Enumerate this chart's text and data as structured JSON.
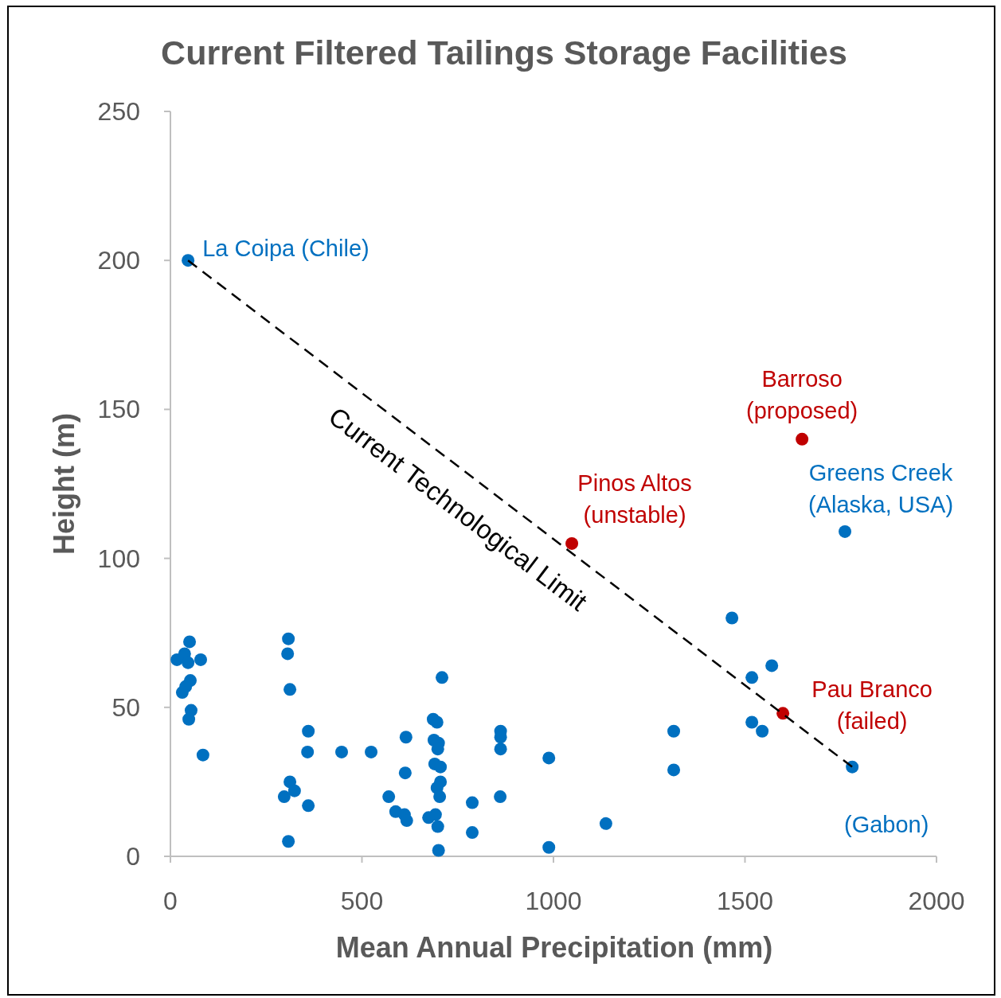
{
  "chart_data": {
    "type": "scatter",
    "title": "Current Filtered Tailings Storage Facilities",
    "xlabel": "Mean Annual Precipitation (mm)",
    "ylabel": "Height (m)",
    "xlim": [
      0,
      2000
    ],
    "xticks": [
      0,
      500,
      1000,
      1500,
      2000
    ],
    "ylim": [
      0,
      250
    ],
    "yticks": [
      0,
      50,
      100,
      150,
      200,
      250
    ],
    "grid": false,
    "marker": "circle",
    "series": [
      {
        "color": "#0070c0",
        "x": [
          46,
          17,
          37,
          50,
          46,
          79,
          52,
          40,
          31,
          54,
          48,
          85,
          308,
          306,
          312,
          360,
          358,
          312,
          324,
          297,
          360,
          308,
          447,
          524,
          615,
          613,
          570,
          588,
          611,
          617,
          709,
          686,
          696,
          688,
          700,
          698,
          690,
          705,
          705,
          696,
          703,
          674,
          692,
          698,
          700,
          788,
          788,
          862,
          862,
          862,
          861,
          988,
          988,
          1137,
          1314,
          1314,
          1466,
          1518,
          1518,
          1570,
          1545,
          1761,
          1780
        ],
        "values": [
          200,
          66,
          68,
          72,
          65,
          66,
          59,
          57,
          55,
          49,
          46,
          34,
          73,
          68,
          56,
          42,
          35,
          25,
          22,
          20,
          17,
          5,
          35,
          35,
          40,
          28,
          20,
          15,
          14,
          12,
          60,
          46,
          45,
          39,
          38,
          36,
          31,
          30,
          25,
          23,
          20,
          13,
          14,
          10,
          2,
          18,
          8,
          42,
          40,
          36,
          20,
          33,
          3,
          11,
          42,
          29,
          80,
          60,
          45,
          64,
          42,
          109,
          30
        ]
      },
      {
        "color": "#c00000",
        "x": [
          1048,
          1649,
          1599
        ],
        "values": [
          105,
          140,
          48
        ]
      },
      {
        "type": "line",
        "color": "#000000",
        "line_style": "dashed",
        "marker": "none",
        "x": [
          46,
          1780
        ],
        "values": [
          200,
          30
        ]
      }
    ],
    "annotations": [
      {
        "text": "La Coipa (Chile)",
        "x": 46,
        "y": 200
      },
      {
        "text": "Pinos Altos\n(unstable)",
        "x": 1048,
        "y": 105
      },
      {
        "text": "Barroso\n(proposed)",
        "x": 1649,
        "y": 140
      },
      {
        "text": "Greens Creek\n(Alaska, USA)",
        "x": 1761,
        "y": 109
      },
      {
        "text": "Pau Branco\n(failed)",
        "x": 1599,
        "y": 48
      },
      {
        "text": "(Gabon)",
        "x": 1780,
        "y": 30
      },
      "Current Technological Limit"
    ]
  }
}
